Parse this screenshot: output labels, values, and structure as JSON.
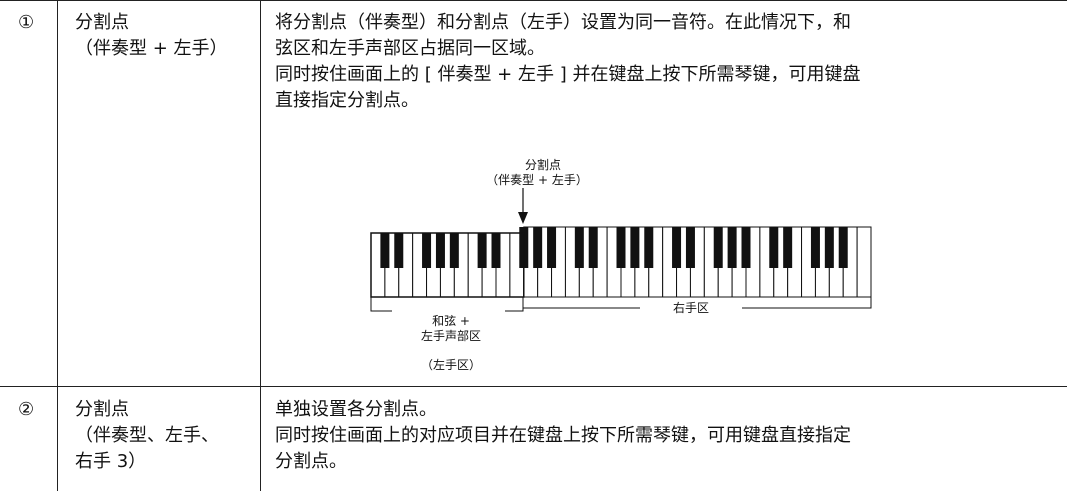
{
  "table": {
    "rows": [
      {
        "number": "①",
        "name": [
          "分割点",
          "（伴奏型 + 左手）"
        ],
        "description": [
          "将分割点（伴奏型）和分割点（左手）设置为同一音符。在此情况下，和",
          "弦区和左手声部区占据同一区域。",
          "同时按住画面上的 [ 伴奏型 + 左手 ] 并在键盘上按下所需琴键，可用键盘",
          "直接指定分割点。"
        ]
      },
      {
        "number": "②",
        "name": [
          "分割点",
          "（伴奏型、左手、",
          "右手 3）"
        ],
        "description": [
          "单独设置各分割点。",
          "同时按住画面上的对应项目并在键盘上按下所需琴键，可用键盘直接指定",
          "分割点。"
        ]
      }
    ]
  },
  "diagram": {
    "split_label": [
      "分割点",
      "（伴奏型 + 左手）"
    ],
    "left_zone": [
      "和弦 +",
      "左手声部区"
    ],
    "left_zone_note": "（左手区）",
    "right_zone": "右手区"
  }
}
